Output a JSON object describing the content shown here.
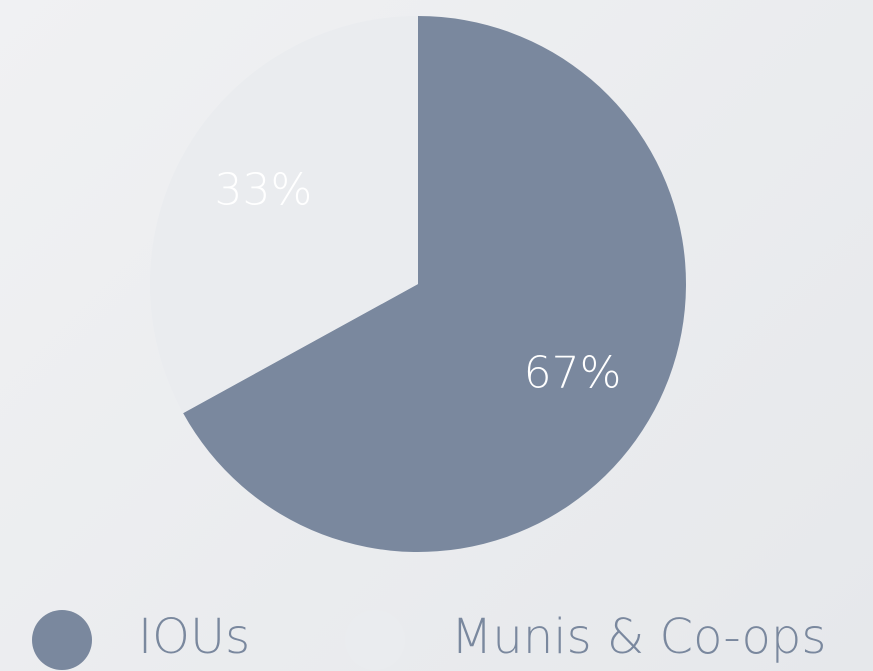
{
  "chart_data": {
    "type": "pie",
    "categories": [
      "IOUs",
      "Munis & Co-ops"
    ],
    "values": [
      67,
      33
    ],
    "value_labels": [
      "67%",
      "33%"
    ],
    "colors": [
      "#7a889e",
      "#eaecef"
    ],
    "legend": "bottom"
  }
}
